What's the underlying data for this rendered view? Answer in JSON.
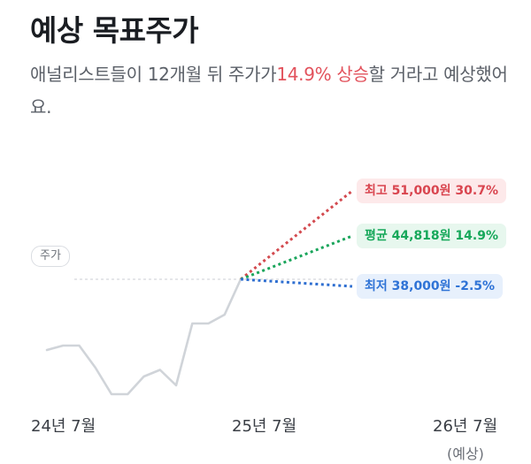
{
  "header": {
    "title": "예상 목표주가",
    "subtitle_pre": "애널리스트들이 12개월 뒤 주가가",
    "subtitle_highlight": "14.9% 상승",
    "subtitle_post": "할 거라고 예상했어요."
  },
  "chart_data": {
    "type": "line",
    "price_label": "주가",
    "x_labels": [
      "24년 7월",
      "25년 7월",
      "26년 7월"
    ],
    "x_sublabel": "(예상)",
    "history": {
      "color": "#d0d4d9",
      "values": [
        50,
        51,
        51,
        46,
        40,
        40,
        44,
        45.5,
        42,
        56,
        56,
        58,
        66
      ]
    },
    "current": 66,
    "forecasts": [
      {
        "key": "high",
        "label": "최고",
        "price": "51,000원",
        "pct": "30.7%",
        "value": 86,
        "color": "#d34a4f"
      },
      {
        "key": "avg",
        "label": "평균",
        "price": "44,818원",
        "pct": "14.9%",
        "value": 75.8,
        "color": "#1aa55b"
      },
      {
        "key": "low",
        "label": "최저",
        "price": "38,000원",
        "pct": "-2.5%",
        "value": 64.4,
        "color": "#2f6fd1"
      }
    ],
    "colors": {
      "accent_up": "#e2525c",
      "gridline": "#d5d8dc"
    }
  }
}
